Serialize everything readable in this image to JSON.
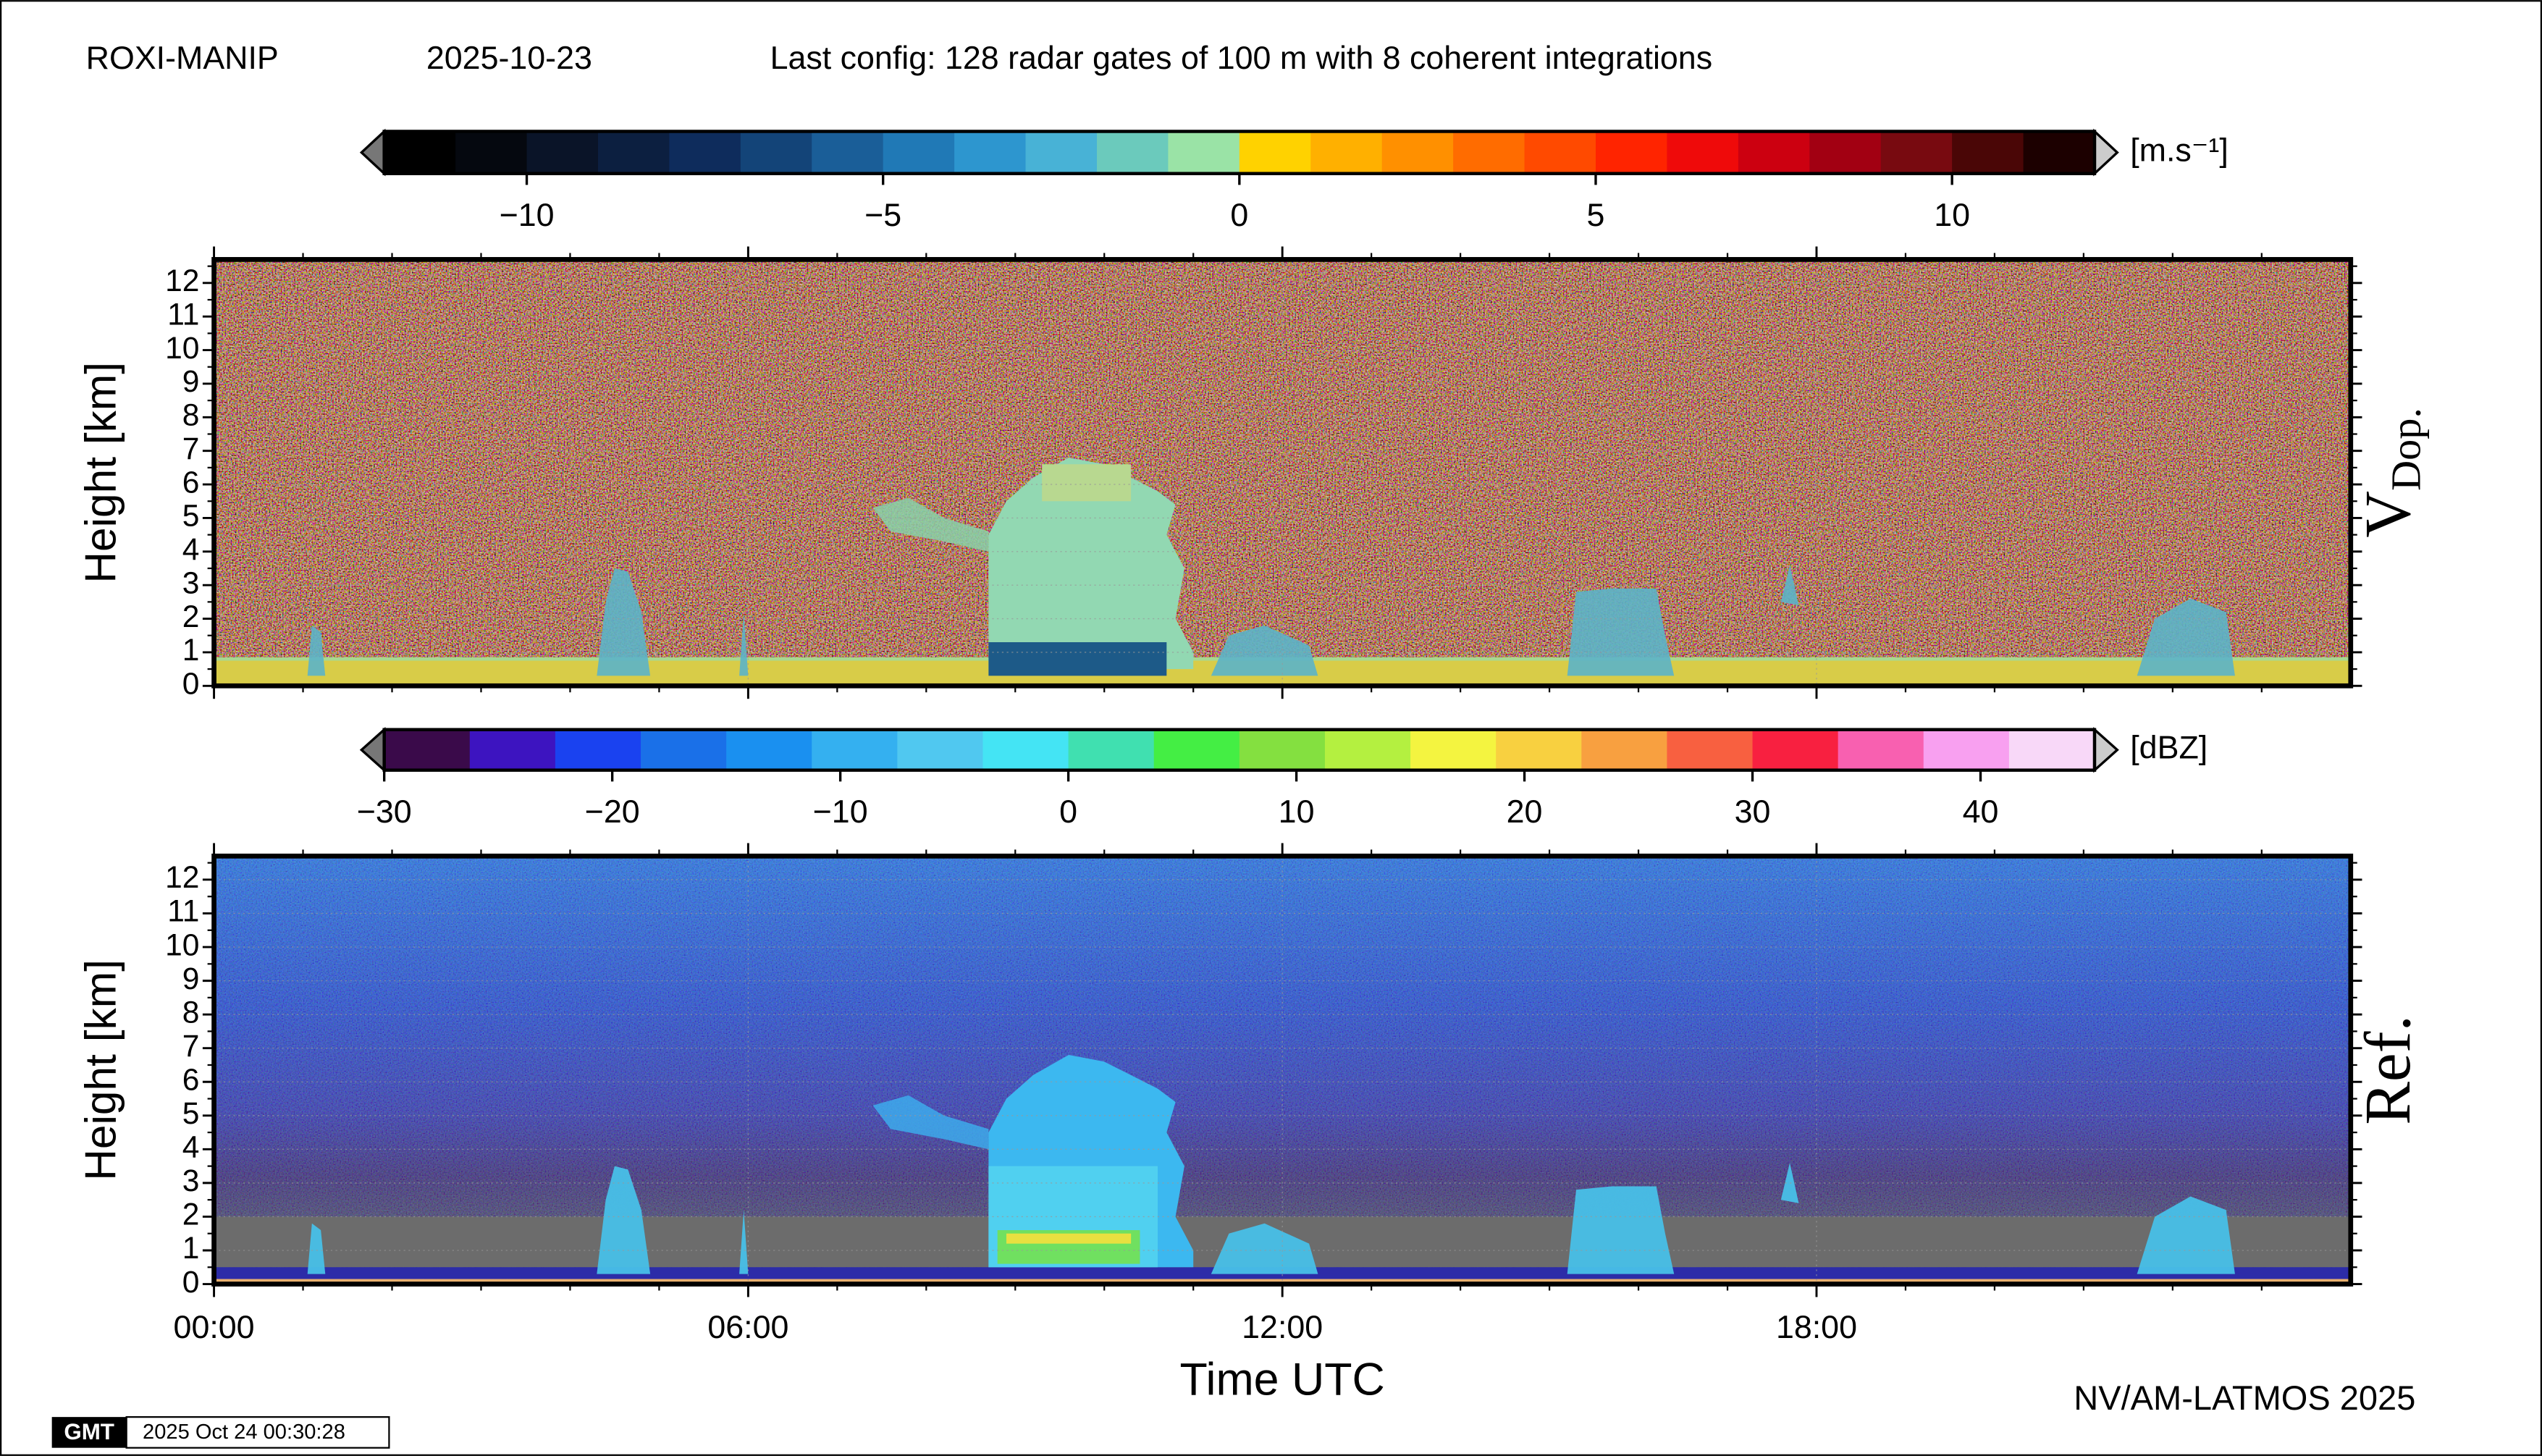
{
  "header": {
    "station": "ROXI-MANIP",
    "date": "2025-10-23",
    "config": "Last config: 128 radar gates of 100 m with 8 coherent integrations"
  },
  "colorbars": [
    {
      "unit": "[m.s⁻¹]",
      "lim": [
        -12,
        12
      ],
      "ticks": [
        {
          "value": -10,
          "label": "−10"
        },
        {
          "value": -5,
          "label": "−5"
        },
        0,
        5,
        10
      ],
      "colors": [
        "#000000",
        "#05080f",
        "#0a1428",
        "#0c1f40",
        "#0e2c5c",
        "#134478",
        "#1a5e98",
        "#2079b6",
        "#2d96cf",
        "#48b2d6",
        "#6bcabc",
        "#9ae3a6",
        "#ffd200",
        "#ffb000",
        "#ff9000",
        "#ff6c00",
        "#ff4a00",
        "#ff2400",
        "#ef0a0a",
        "#cc0010",
        "#a20012",
        "#780a10",
        "#4a0606",
        "#1c0000"
      ]
    },
    {
      "unit": "[dBZ]",
      "lim": [
        -30,
        45
      ],
      "ticks": [
        {
          "value": -30,
          "label": "−30"
        },
        {
          "value": -20,
          "label": "−20"
        },
        {
          "value": -10,
          "label": "−10"
        },
        0,
        10,
        20,
        30,
        40
      ],
      "colors": [
        "#3a0a4a",
        "#3d14c0",
        "#1a42f0",
        "#1a70e8",
        "#1a90f0",
        "#34b0f0",
        "#50c8f0",
        "#44e4f4",
        "#40e0b0",
        "#44ee44",
        "#84e040",
        "#b4f040",
        "#f4f440",
        "#f8d040",
        "#f8a040",
        "#f86040",
        "#f82040",
        "#f860b0",
        "#f8a0f0",
        "#f8d8f8"
      ]
    }
  ],
  "panels": [
    {
      "label": "V",
      "label_sub": "Dop.",
      "ylabel": "Height [km]",
      "ylim": [
        0,
        12.7
      ],
      "yticks": [
        0,
        1,
        2,
        3,
        4,
        5,
        6,
        7,
        8,
        9,
        10,
        11,
        12
      ],
      "grid": true
    },
    {
      "label": "Ref.",
      "ylabel": "Height [km]",
      "ylim": [
        0,
        12.7
      ],
      "yticks": [
        0,
        1,
        2,
        3,
        4,
        5,
        6,
        7,
        8,
        9,
        10,
        11,
        12
      ],
      "grid": true
    }
  ],
  "xaxis": {
    "label": "Time UTC",
    "xlim": [
      0,
      24
    ],
    "xticks": [
      {
        "value": 0,
        "label": "00:00"
      },
      {
        "value": 6,
        "label": "06:00"
      },
      {
        "value": 12,
        "label": "12:00"
      },
      {
        "value": 18,
        "label": "18:00"
      }
    ]
  },
  "footer": {
    "credit": "NV/AM-LATMOS 2025",
    "logo": "GMT",
    "timestamp": "2025 Oct 24 00:30:28"
  }
}
